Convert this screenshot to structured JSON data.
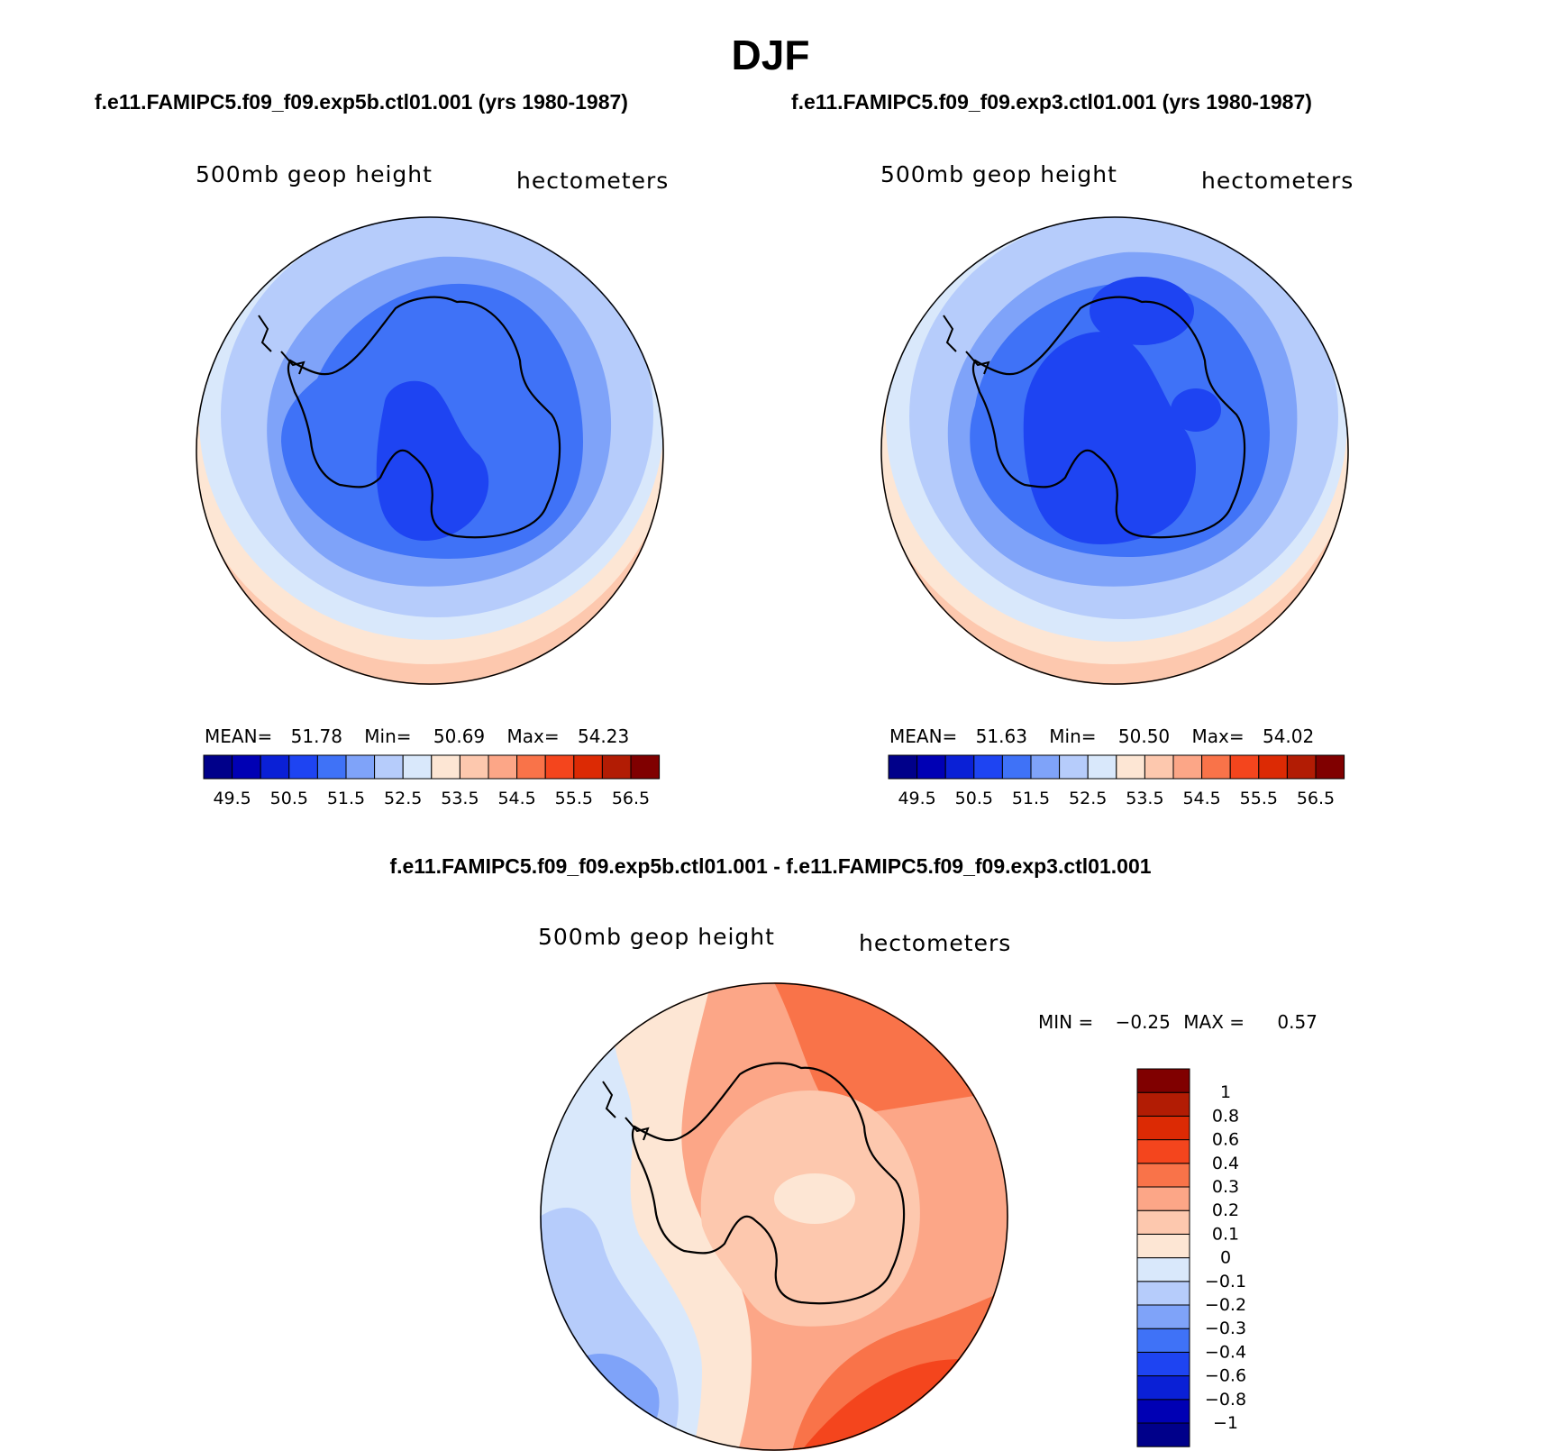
{
  "page_title": "DJF",
  "palette": [
    "#00008a",
    "#0000b4",
    "#0a20d6",
    "#1e44f2",
    "#3f72f7",
    "#7fa3f9",
    "#b6ccfb",
    "#d9e8fb",
    "#fde6d4",
    "#fdc8ae",
    "#fca687",
    "#f97349",
    "#f4451d",
    "#dc2a04",
    "#b21c04",
    "#800000"
  ],
  "chart_data": [
    {
      "type": "heatmap",
      "title": "f.e11.FAMIPC5.f09_f09.exp5b.ctl01.001 (yrs 1980-1987)",
      "variable": "500mb geop height",
      "units": "hectometers",
      "stats": {
        "mean_label": "MEAN=",
        "mean": "51.78",
        "min_label": "Min=",
        "min": "50.69",
        "max_label": "Max=",
        "max": "54.23"
      },
      "colorbar_ticks": [
        "49.5",
        "50.5",
        "51.5",
        "52.5",
        "53.5",
        "54.5",
        "55.5",
        "56.5"
      ],
      "contour_levels": [
        49.5,
        50,
        50.5,
        51,
        51.5,
        52,
        52.5,
        53,
        53.5,
        54,
        54.5,
        55,
        55.5,
        56,
        56.5
      ]
    },
    {
      "type": "heatmap",
      "title": "f.e11.FAMIPC5.f09_f09.exp3.ctl01.001 (yrs 1980-1987)",
      "variable": "500mb geop height",
      "units": "hectometers",
      "stats": {
        "mean_label": "MEAN=",
        "mean": "51.63",
        "min_label": "Min=",
        "min": "50.50",
        "max_label": "Max=",
        "max": "54.02"
      },
      "colorbar_ticks": [
        "49.5",
        "50.5",
        "51.5",
        "52.5",
        "53.5",
        "54.5",
        "55.5",
        "56.5"
      ],
      "contour_levels": [
        49.5,
        50,
        50.5,
        51,
        51.5,
        52,
        52.5,
        53,
        53.5,
        54,
        54.5,
        55,
        55.5,
        56,
        56.5
      ]
    },
    {
      "type": "heatmap",
      "title": "f.e11.FAMIPC5.f09_f09.exp5b.ctl01.001 - f.e11.FAMIPC5.f09_f09.exp3.ctl01.001",
      "variable": "500mb geop height",
      "units": "hectometers",
      "stats": {
        "min_label": "MIN =",
        "min": "−0.25",
        "max_label": "MAX =",
        "max": "0.57"
      },
      "colorbar_ticks": [
        "1",
        "0.8",
        "0.6",
        "0.4",
        "0.3",
        "0.2",
        "0.1",
        "0",
        "−0.1",
        "−0.2",
        "−0.3",
        "−0.4",
        "−0.6",
        "−0.8",
        "−1"
      ],
      "contour_levels": [
        -1,
        -0.8,
        -0.6,
        -0.4,
        -0.3,
        -0.2,
        -0.1,
        0,
        0.1,
        0.2,
        0.3,
        0.4,
        0.6,
        0.8,
        1
      ]
    }
  ]
}
